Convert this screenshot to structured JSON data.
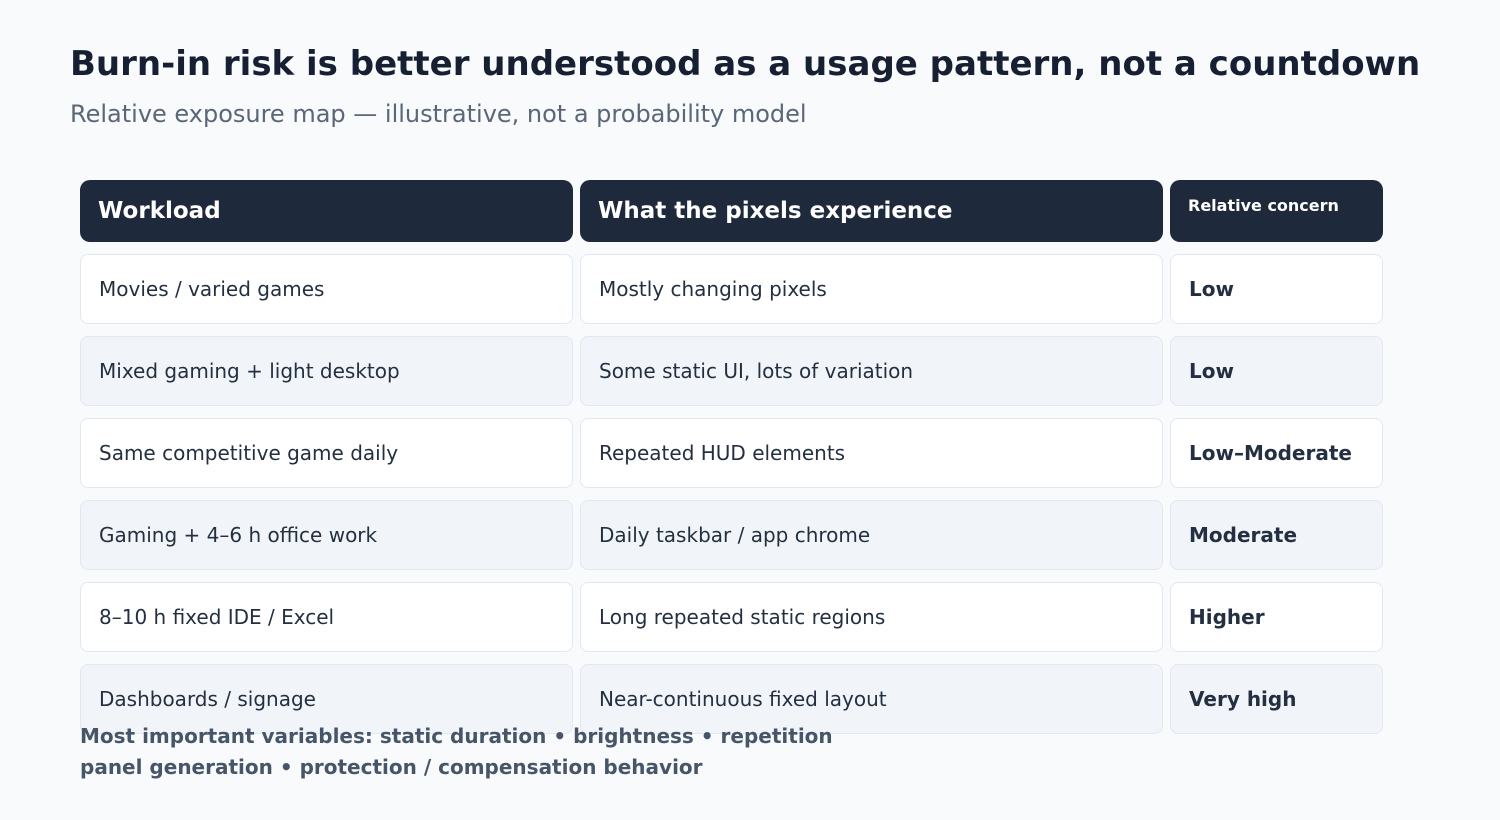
{
  "header": {
    "title": "Burn-in risk is better understood as a usage pattern, not a countdown",
    "subtitle": "Relative exposure map — illustrative, not a probability model"
  },
  "table": {
    "columns": [
      "Workload",
      "What the pixels experience",
      "Relative concern"
    ],
    "rows": [
      [
        "Movies / varied games",
        "Mostly changing pixels",
        "Low"
      ],
      [
        "Mixed gaming + light desktop",
        "Some static UI, lots of variation",
        "Low"
      ],
      [
        "Same competitive game daily",
        "Repeated HUD elements",
        "Low–Moderate"
      ],
      [
        "Gaming + 4–6 h office work",
        "Daily taskbar / app chrome",
        "Moderate"
      ],
      [
        "8–10 h fixed IDE / Excel",
        "Long repeated static regions",
        "Higher"
      ],
      [
        "Dashboards / signage",
        "Near-continuous fixed layout",
        "Very high"
      ]
    ]
  },
  "footer": {
    "lines": [
      "Most important variables: static duration • brightness • repetition",
      "panel generation • protection / compensation behavior"
    ]
  }
}
